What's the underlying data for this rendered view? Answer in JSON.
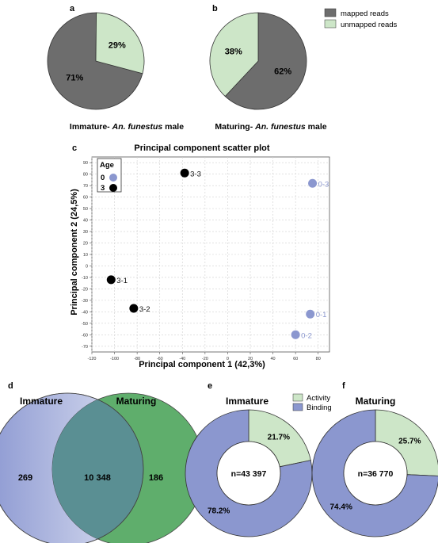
{
  "panels": {
    "a": "a",
    "b": "b",
    "c": "c",
    "d": "d",
    "e": "e",
    "f": "f"
  },
  "colors": {
    "mapped": "#6d6d6d",
    "unmapped": "#cde6c8",
    "age0": "#8b97cf",
    "age3": "#000000",
    "binding": "#8b97cf",
    "activity": "#cde6c8",
    "venn_left": "#8f9bd3",
    "venn_right": "#5fae6c",
    "venn_overlap": "#5a8f93"
  },
  "chart_data": [
    {
      "id": "a",
      "type": "pie",
      "caption_prefix": "Immature- ",
      "caption_italic": "An. funestus",
      "caption_suffix": " male",
      "slices": [
        {
          "name": "mapped reads",
          "value": 71,
          "label": "71%"
        },
        {
          "name": "unmapped reads",
          "value": 29,
          "label": "29%"
        }
      ]
    },
    {
      "id": "b",
      "type": "pie",
      "caption_prefix": "Maturing- ",
      "caption_italic": "An. funestus",
      "caption_suffix": " male",
      "legend": [
        "mapped reads",
        "unmapped reads"
      ],
      "slices": [
        {
          "name": "mapped reads",
          "value": 62,
          "label": "62%"
        },
        {
          "name": "unmapped reads",
          "value": 38,
          "label": "38%"
        }
      ]
    },
    {
      "id": "c",
      "type": "scatter",
      "title": "Principal component scatter plot",
      "xlabel": "Principal component 1 (42,3%)",
      "ylabel": "Principal component 2 (24,5%)",
      "xlim": [
        -120,
        90
      ],
      "ylim": [
        -75,
        95
      ],
      "xticks": [
        -120,
        -100,
        -80,
        -60,
        -40,
        -20,
        0,
        20,
        40,
        60,
        80
      ],
      "yticks": [
        90,
        80,
        70,
        60,
        50,
        40,
        30,
        20,
        10,
        0,
        -10,
        -20,
        -30,
        -40,
        -50,
        -60,
        -70
      ],
      "grid": true,
      "legend_title": "Age",
      "series": [
        {
          "name": "0",
          "points": [
            {
              "label": "0-3",
              "x": 75,
              "y": 72
            },
            {
              "label": "0-1",
              "x": 73,
              "y": -42
            },
            {
              "label": "0-2",
              "x": 60,
              "y": -60
            }
          ]
        },
        {
          "name": "3",
          "points": [
            {
              "label": "3-3",
              "x": -38,
              "y": 81
            },
            {
              "label": "3-1",
              "x": -103,
              "y": -12
            },
            {
              "label": "3-2",
              "x": -83,
              "y": -37
            }
          ]
        }
      ]
    },
    {
      "id": "d",
      "type": "venn",
      "sets": [
        "Immature",
        "Maturing"
      ],
      "only_left": "269",
      "overlap": "10 348",
      "only_right": "186"
    },
    {
      "id": "e",
      "type": "donut",
      "title": "Immature",
      "center": "n=43 397",
      "legend": [
        "Activity",
        "Binding"
      ],
      "slices": [
        {
          "name": "Activity",
          "value": 21.7,
          "label": "21.7%"
        },
        {
          "name": "Binding",
          "value": 78.2,
          "label": "78.2%"
        }
      ]
    },
    {
      "id": "f",
      "type": "donut",
      "title": "Maturing",
      "center": "n=36 770",
      "slices": [
        {
          "name": "Activity",
          "value": 25.7,
          "label": "25.7%"
        },
        {
          "name": "Binding",
          "value": 74.4,
          "label": "74.4%"
        }
      ]
    }
  ]
}
